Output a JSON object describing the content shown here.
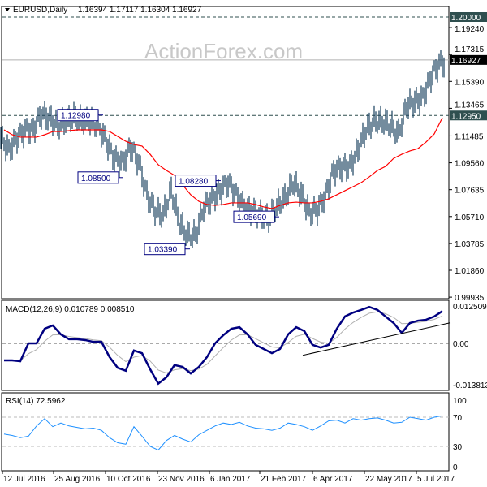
{
  "header": {
    "symbol": "EURUSD,Daily",
    "ohlc": "1.16394 1.17117 1.16304 1.16927",
    "arrow_icon": "triangle-down"
  },
  "watermark": "ActionForex.com",
  "chart_data": [
    {
      "type": "ohlc-bar",
      "title": "EURUSD,Daily",
      "x_unit": "week index",
      "closes": [
        1.1134,
        1.1047,
        1.1134,
        1.1192,
        1.1192,
        1.1308,
        1.1279,
        1.1221,
        1.125,
        1.1279,
        1.125,
        1.125,
        1.1221,
        1.1105,
        1.0988,
        1.0959,
        1.1076,
        1.0959,
        1.0727,
        1.061,
        1.0581,
        1.0756,
        1.0523,
        1.0436,
        1.0436,
        1.064,
        1.0698,
        1.0756,
        1.0814,
        1.0727,
        1.064,
        1.061,
        1.0581,
        1.0552,
        1.064,
        1.0698,
        1.0814,
        1.0727,
        1.0599,
        1.0622,
        1.0727,
        1.0901,
        1.093,
        1.093,
        1.1047,
        1.1192,
        1.125,
        1.125,
        1.1221,
        1.1163,
        1.1366,
        1.1395,
        1.1424,
        1.157,
        1.1669
      ],
      "ma": [
        1.1192,
        1.1157,
        1.114,
        1.114,
        1.114,
        1.1157,
        1.118,
        1.118,
        1.1186,
        1.1192,
        1.1192,
        1.1192,
        1.1192,
        1.118,
        1.1145,
        1.111,
        1.1087,
        1.1076,
        1.1017,
        1.0942,
        1.0901,
        1.0866,
        1.0797,
        1.0727,
        1.068,
        1.0657,
        1.0651,
        1.0657,
        1.0669,
        1.0669,
        1.0669,
        1.0657,
        1.064,
        1.0628,
        1.0651,
        1.0669,
        1.0674,
        1.0669,
        1.0669,
        1.068,
        1.0698,
        1.0727,
        1.0756,
        1.0785,
        1.0814,
        1.0855,
        1.0901,
        1.093,
        1.0988,
        1.1017,
        1.1041,
        1.1058,
        1.1105,
        1.1163,
        1.1279
      ],
      "y_ticks": [
        "1.19240",
        "1.17315",
        "1.15390",
        "1.13465",
        "1.11485",
        "1.09560",
        "1.07635",
        "1.05710",
        "1.03785",
        "1.01860",
        "0.99935"
      ],
      "ylim": [
        0.99935,
        1.2063
      ],
      "levels": [
        {
          "label": "1.20000",
          "value": 1.2,
          "style": "dashed",
          "bg": "#2f4f4f"
        },
        {
          "label": "1.12950",
          "value": 1.1295,
          "style": "dashed",
          "bg": "#2f4f4f"
        },
        {
          "label": "1.16927",
          "value": 1.16927,
          "style": "solid",
          "bg": "#000000"
        }
      ],
      "annotations": [
        {
          "label": "1.12980",
          "value": 1.1298,
          "week": 11.8
        },
        {
          "label": "1.08500",
          "value": 1.085,
          "week": 14.3
        },
        {
          "label": "1.08280",
          "value": 1.0828,
          "week": 26.3
        },
        {
          "label": "1.03390",
          "value": 1.0339,
          "week": 22.5
        },
        {
          "label": "1.05690",
          "value": 1.0569,
          "week": 33.5
        }
      ],
      "colors": {
        "bars": "#17405e",
        "ma": "#ff0000"
      }
    },
    {
      "type": "line",
      "title": "MACD(12,26,9) 0.010789 0.008510",
      "macd": [
        -0.0057,
        -0.0057,
        -0.006,
        0,
        0,
        0.0049,
        0.006,
        0.003,
        0.0014,
        0.0014,
        0.0011,
        0.0005,
        0.0005,
        -0.0046,
        -0.0082,
        -0.0092,
        -0.0024,
        -0.0033,
        -0.0087,
        -0.0135,
        -0.0114,
        -0.0073,
        -0.0079,
        -0.0101,
        -0.0079,
        -0.0046,
        0,
        0.0027,
        0.0049,
        0.0054,
        0.003,
        -0.0005,
        -0.0019,
        -0.0033,
        -0.0019,
        0.003,
        0.0054,
        0.0041,
        -0.0005,
        -0.0014,
        -0.0005,
        0.0049,
        0.009,
        0.0103,
        0.0112,
        0.0122,
        0.0112,
        0.009,
        0.0068,
        0.0035,
        0.0068,
        0.0076,
        0.0079,
        0.009,
        0.0108
      ],
      "y_ticks": [
        "0.012509",
        "0.00",
        "-0.013813"
      ],
      "ylim": [
        -0.013813,
        0.012509
      ],
      "trendline": [
        [
          36.8,
          -0.004
        ],
        [
          55,
          0.0069
        ]
      ],
      "colors": {
        "macd": "#000080",
        "signal": "#b0b0b0"
      }
    },
    {
      "type": "line",
      "title": "RSI(14) 72.5962",
      "rsi": [
        47,
        45,
        42,
        44,
        58,
        68,
        57,
        62,
        58,
        56,
        54,
        55,
        52,
        42,
        35,
        33,
        57,
        44,
        30,
        25,
        38,
        45,
        40,
        36,
        46,
        52,
        58,
        62,
        60,
        63,
        58,
        55,
        54,
        52,
        55,
        62,
        60,
        57,
        52,
        58,
        65,
        66,
        62,
        68,
        66,
        68,
        69,
        66,
        62,
        63,
        70,
        68,
        66,
        70,
        72
      ],
      "y_ticks": [
        "100",
        "70",
        "30",
        "0"
      ],
      "ylim": [
        0,
        100
      ],
      "levels": [
        70,
        30
      ],
      "colors": {
        "rsi": "#1e90ff"
      }
    }
  ],
  "x_axis": {
    "labels": [
      "12 Jul 2016",
      "25 Aug 2016",
      "10 Oct 2016",
      "23 Nov 2016",
      "6 Jan 2017",
      "21 Feb 2017",
      "6 Apr 2017",
      "22 May 2017",
      "5 Jul 2017"
    ],
    "weeks": [
      -0.2,
      6.1,
      12.5,
      18.9,
      25.3,
      31.5,
      38,
      44.4,
      50.8
    ]
  }
}
